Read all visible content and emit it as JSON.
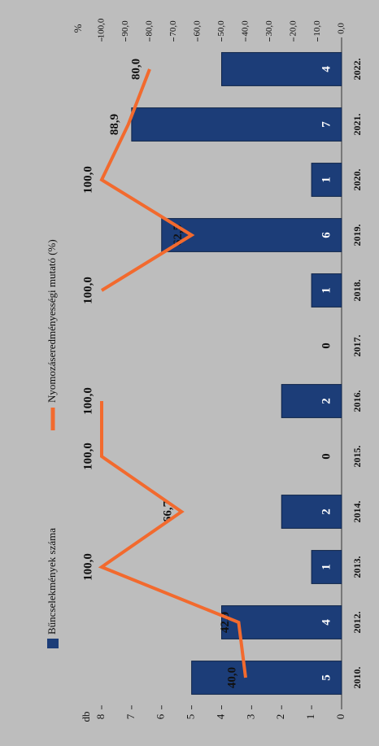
{
  "chart_data": {
    "type": "combo",
    "categories": [
      "2010.",
      "2012.",
      "2013.",
      "2014.",
      "2015.",
      "2016.",
      "2017.",
      "2018.",
      "2019.",
      "2020.",
      "2021.",
      "2022."
    ],
    "series": [
      {
        "name": "Bűncselekmények száma",
        "color": "#1c3d78",
        "values": [
          5,
          4,
          1,
          2,
          0,
          2,
          0,
          1,
          6,
          1,
          7,
          4
        ]
      },
      {
        "name": "Nyomozáseredményességi mutató (%)",
        "color": "#f26a2e",
        "axis": "y2",
        "values": [
          40.0,
          42.9,
          100.0,
          66.7,
          100.0,
          100.0,
          null,
          100.0,
          62.5,
          100.0,
          88.9,
          80.0
        ],
        "value_labels": [
          "40,0",
          "42,9",
          "100,0",
          "66,7",
          "100,0",
          "100,0",
          null,
          "100,0",
          "62,5",
          "100,0",
          "88,9",
          "80,0"
        ]
      }
    ],
    "ylabel": "db",
    "y2label": "%",
    "ylim": [
      0,
      8
    ],
    "yticks": [
      0,
      1,
      2,
      3,
      4,
      5,
      6,
      7,
      8
    ],
    "y2lim": [
      0,
      100
    ],
    "y2ticks": [
      {
        "value": 0,
        "label": "0,0"
      },
      {
        "value": 10,
        "label": "10,0"
      },
      {
        "value": 20,
        "label": "20,0"
      },
      {
        "value": 30,
        "label": "30,0"
      },
      {
        "value": 40,
        "label": "40,0"
      },
      {
        "value": 50,
        "label": "50,0"
      },
      {
        "value": 60,
        "label": "60,0"
      },
      {
        "value": 70,
        "label": "70,0"
      },
      {
        "value": 80,
        "label": "80,0"
      },
      {
        "value": 90,
        "label": "90,0"
      },
      {
        "value": 100,
        "label": "100,0"
      }
    ]
  }
}
